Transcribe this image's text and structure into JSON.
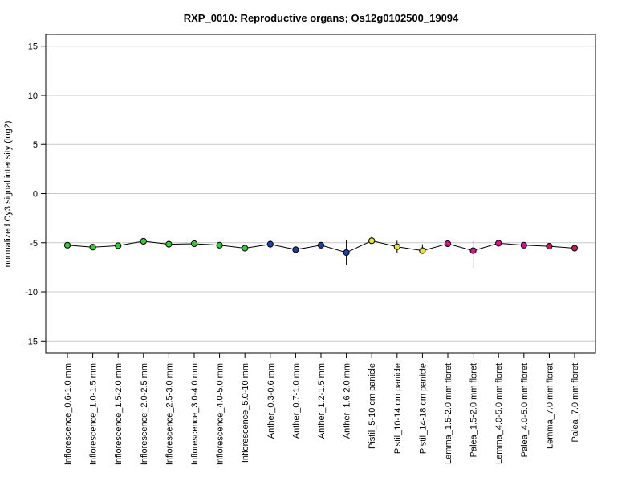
{
  "chart_data": {
    "type": "line",
    "title": "RXP_0010: Reproductive organs; Os12g0102500_19094",
    "ylabel": "normalized Cy3 signal intensity (log2)",
    "xlabel": "",
    "ylim": [
      -16.2,
      16.2
    ],
    "yticks": [
      -15,
      -10,
      -5,
      0,
      5,
      10,
      15
    ],
    "grid": "horizontal",
    "categories": [
      "Inflorescence_0.6-1.0 mm",
      "Inflorescence_1.0-1.5 mm",
      "Inflorescence_1.5-2.0 mm",
      "Inflorescence_2.0-2.5 mm",
      "Inflorescence_2.5-3.0 mm",
      "Inflorescence_3.0-4.0 mm",
      "Inflorescence_4.0-5.0 mm",
      "Inflorescence_5.0-10 mm",
      "Anther_0.3-0.6 mm",
      "Anther_0.7-1.0 mm",
      "Anther_1.2-1.5 mm",
      "Anther_1.6-2.0 mm",
      "Pistil_5-10 cm panicle",
      "Pistil_10-14 cm panicle",
      "Pistil_14-18 cm panicle",
      "Lemma_1.5-2.0 mm floret",
      "Palea_1.5-2.0 mm floret",
      "Lemma_4.0-5.0 mm floret",
      "Palea_4.0-5.0 mm floret",
      "Lemma_7.0 mm floret",
      "Palea_7.0 mm floret"
    ],
    "values": [
      -5.25,
      -5.45,
      -5.3,
      -4.85,
      -5.15,
      -5.1,
      -5.25,
      -5.55,
      -5.15,
      -5.7,
      -5.25,
      -6.0,
      -4.8,
      -5.4,
      -5.8,
      -5.1,
      -5.8,
      -5.05,
      -5.25,
      -5.35,
      -5.55
    ],
    "error_low": [
      -5.25,
      -5.45,
      -5.3,
      -4.85,
      -5.15,
      -5.1,
      -5.25,
      -5.55,
      -5.55,
      -5.8,
      -5.4,
      -7.3,
      -5.0,
      -6.0,
      -6.05,
      -5.3,
      -7.6,
      -5.2,
      -5.35,
      -5.5,
      -5.75
    ],
    "error_high": [
      -5.25,
      -5.45,
      -5.3,
      -4.85,
      -5.15,
      -5.1,
      -5.25,
      -5.55,
      -4.75,
      -5.6,
      -5.1,
      -4.7,
      -4.4,
      -4.8,
      -5.15,
      -4.85,
      -4.8,
      -4.85,
      -5.1,
      -5.2,
      -5.2
    ],
    "point_colors": [
      "#33cc33",
      "#33cc33",
      "#33cc33",
      "#33cc33",
      "#33cc33",
      "#33cc33",
      "#33cc33",
      "#33cc33",
      "#1f3fa8",
      "#1f3fa8",
      "#1f3fa8",
      "#1f3fa8",
      "#e6e62a",
      "#e6e62a",
      "#e6e62a",
      "#d4148c",
      "#d4148c",
      "#d4148c",
      "#d4148c",
      "#d4145a",
      "#d4145a"
    ],
    "line_color": "#000000",
    "grid_color": "#c8c8c8"
  }
}
